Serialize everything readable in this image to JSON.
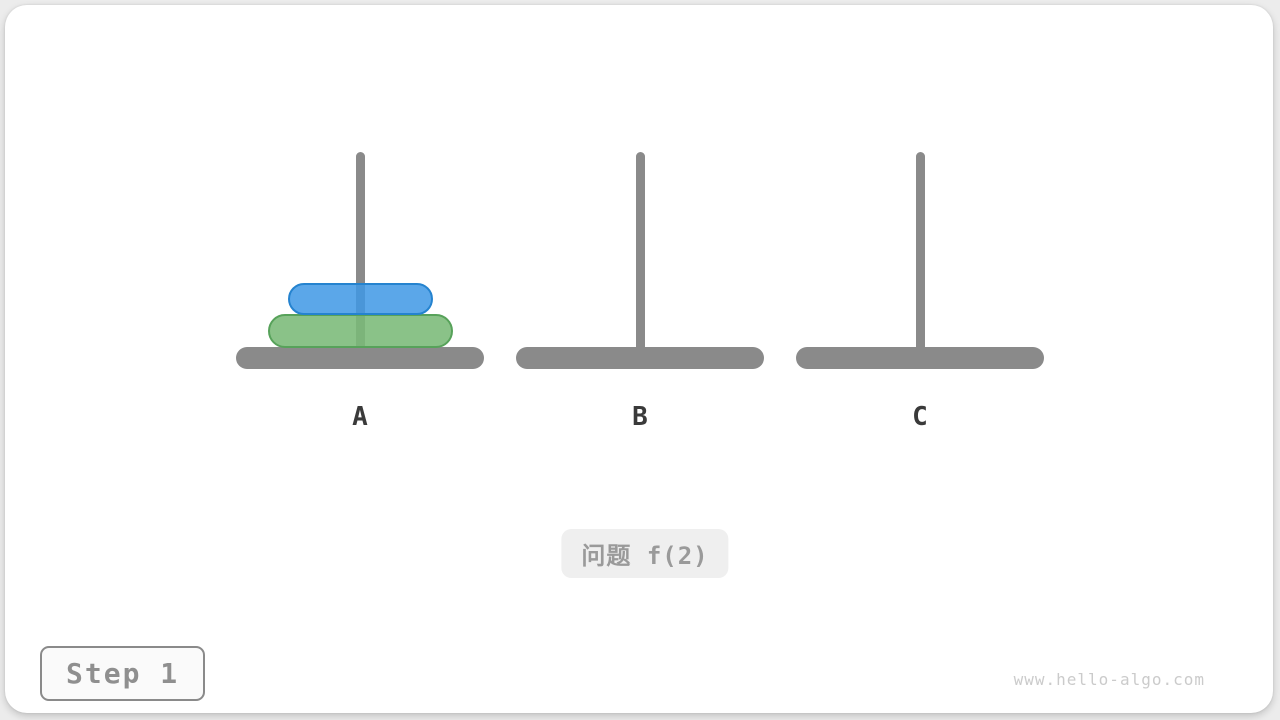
{
  "page": {
    "watermark": "www.hello-algo.com",
    "background": "#ececec",
    "card_background": "#ffffff"
  },
  "problem_badge": {
    "label": "问题 f(2)",
    "background": "#efefef",
    "text_color": "#9a9a9a"
  },
  "step_badge": {
    "label": "Step 1",
    "border_color": "#8a8a8a",
    "text_color": "#8f8f8f"
  },
  "towers": [
    {
      "label": "A",
      "disks": [
        {
          "size": 2,
          "color": "green"
        },
        {
          "size": 1,
          "color": "blue"
        }
      ]
    },
    {
      "label": "B",
      "disks": []
    },
    {
      "label": "C",
      "disks": []
    }
  ],
  "disk_styles": {
    "blue": {
      "fill": "rgba(62,152,229,0.85)",
      "border": "#2583cf",
      "width": 145,
      "height": 32
    },
    "green": {
      "fill": "rgba(122,186,119,0.88)",
      "border": "#57a25a",
      "width": 185,
      "height": 34
    }
  },
  "colors": {
    "peg": "#8a8a8a",
    "base": "#8a8a8a",
    "label": "#3a3a3a"
  }
}
